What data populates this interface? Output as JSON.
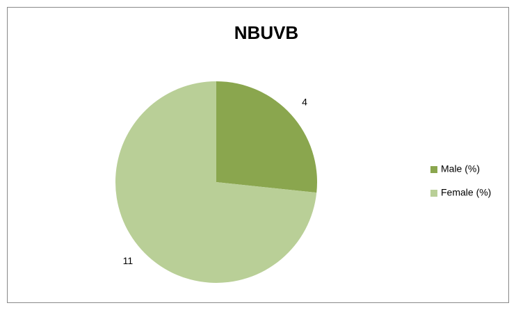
{
  "chart_data": {
    "type": "pie",
    "title": "NBUVB",
    "categories": [
      "Male  (%)",
      "Female (%)"
    ],
    "values": [
      4,
      11
    ],
    "colors": [
      "#8aa64e",
      "#b9cf97"
    ],
    "legend": "right"
  }
}
